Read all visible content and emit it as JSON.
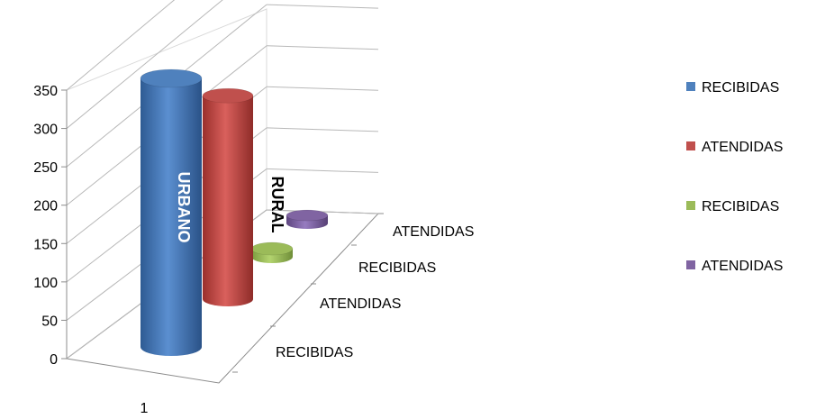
{
  "chart_data": {
    "type": "bar",
    "style": "3d-cylinder",
    "x_categories": [
      "1"
    ],
    "depth_categories": [
      "RECIBIDAS",
      "ATENDIDAS",
      "RECIBIDAS",
      "ATENDIDAS"
    ],
    "series": [
      {
        "name": "RECIBIDAS",
        "color": "#4F81BD",
        "values": [
          350
        ]
      },
      {
        "name": "ATENDIDAS",
        "color": "#C0504D",
        "values": [
          340
        ]
      },
      {
        "name": "RECIBIDAS",
        "color": "#9BBB59",
        "values": [
          10
        ]
      },
      {
        "name": "ATENDIDAS",
        "color": "#8064A2",
        "values": [
          10
        ]
      }
    ],
    "annotations": [
      "URBANO",
      "RURAL"
    ],
    "ylim": [
      0,
      350
    ],
    "yticks": [
      0,
      50,
      100,
      150,
      200,
      250,
      300,
      350
    ],
    "grid": true,
    "legend_position": "right"
  }
}
